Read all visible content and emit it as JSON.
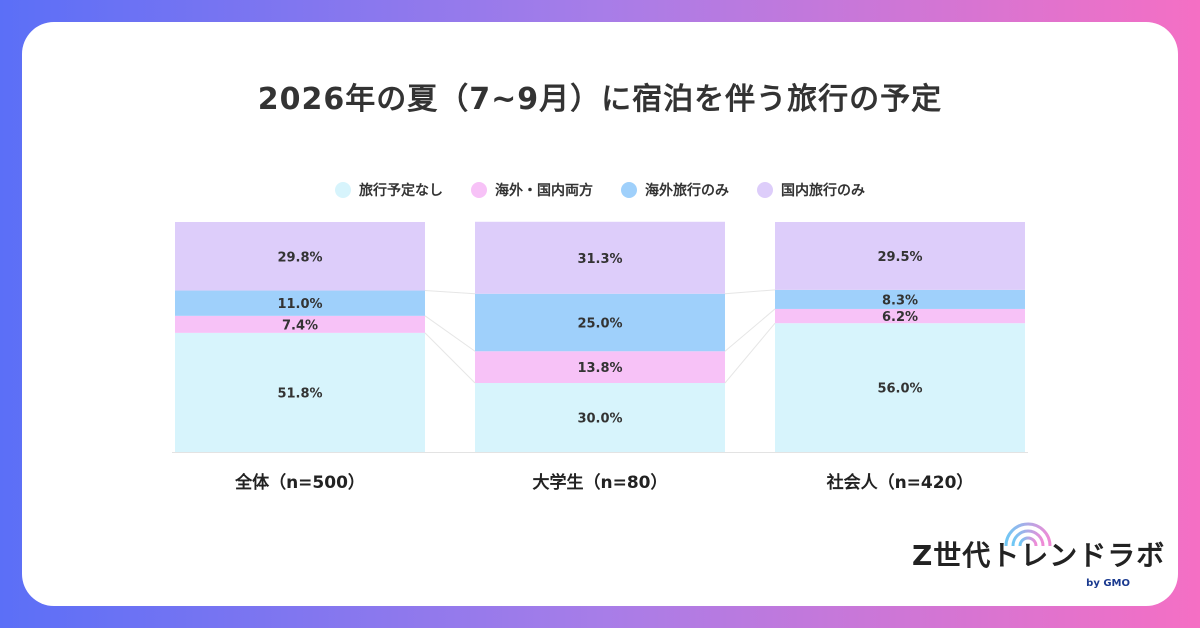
{
  "title": "2026年の夏（7~9月）に宿泊を伴う旅行の予定",
  "legend": [
    {
      "label": "旅行予定なし",
      "color": "#d7f4fc"
    },
    {
      "label": "海外・国内両方",
      "color": "#f7c2f7"
    },
    {
      "label": "海外旅行のみ",
      "color": "#9fd0fb"
    },
    {
      "label": "国内旅行のみ",
      "color": "#ddcdfa"
    }
  ],
  "logo": {
    "main": "Z世代トレンドラボ",
    "sub": "by GMO"
  },
  "chart_data": {
    "type": "bar",
    "stacked": true,
    "normalized_percent": true,
    "categories": [
      "全体（n=500）",
      "大学生（n=80）",
      "社会人（n=420）"
    ],
    "series": [
      {
        "name": "旅行予定なし",
        "color": "#d7f4fc",
        "values": [
          51.8,
          30.0,
          56.0
        ],
        "labels": [
          "51.8%",
          "30.0%",
          "56.0%"
        ]
      },
      {
        "name": "海外・国内両方",
        "color": "#f7c2f7",
        "values": [
          7.4,
          13.8,
          6.2
        ],
        "labels": [
          "7.4%",
          "13.8%",
          "6.2%"
        ]
      },
      {
        "name": "海外旅行のみ",
        "color": "#9fd0fb",
        "values": [
          11.0,
          25.0,
          8.3
        ],
        "labels": [
          "11.0%",
          "25.0%",
          "8.3%"
        ]
      },
      {
        "name": "国内旅行のみ",
        "color": "#ddcdfa",
        "values": [
          29.8,
          31.3,
          29.5
        ],
        "labels": [
          "29.8%",
          "31.3%",
          "29.5%"
        ]
      }
    ],
    "ylim": [
      0,
      100
    ],
    "legend_position": "top"
  }
}
